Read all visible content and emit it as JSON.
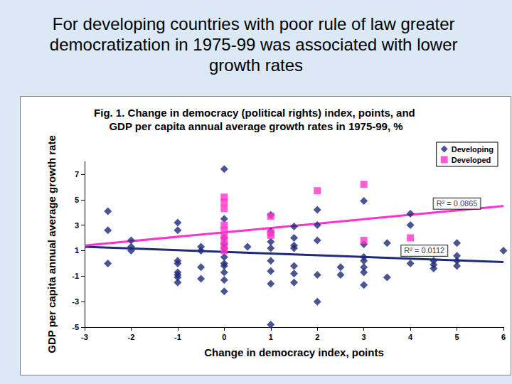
{
  "chart_data": {
    "type": "scatter",
    "title": "For developing countries with poor rule of law greater democratization in 1975-99 was associated with lower growth rates",
    "subtitle": "Fig. 1. Change in democracy (political rights) index, points, and GDP per capita annual average growth rates in 1975-99, %",
    "x_label": "Change in democracy index, points",
    "y_label": "GDP per capita annual average growth rate",
    "xlim": [
      -3,
      6
    ],
    "xticks": [
      -3,
      -2,
      -1,
      0,
      1,
      2,
      3,
      4,
      5,
      6
    ],
    "ylim": [
      -5,
      8
    ],
    "yticks": [
      -5,
      -3,
      -1,
      1,
      3,
      5,
      7
    ],
    "grid": false,
    "legend": "top-right",
    "series": [
      {
        "name": "Developing",
        "color": "#1f2a78",
        "marker": "diamond",
        "x": [
          -2.5,
          -2.5,
          -2.5,
          -2,
          -2,
          -2,
          -1,
          -1,
          -1,
          -1,
          -1,
          -1,
          -1,
          -1,
          -0.5,
          -0.5,
          -0.5,
          -0.5,
          0,
          0,
          0,
          0,
          0,
          0,
          0,
          0,
          0,
          0,
          0,
          0.5,
          1,
          1,
          1,
          1,
          1,
          1,
          1,
          1,
          1.5,
          1.5,
          1.5,
          1.5,
          1.5,
          1.5,
          1.5,
          2,
          2,
          2,
          2,
          2,
          2.5,
          2.5,
          3,
          3,
          3,
          3,
          3,
          3,
          3,
          3.5,
          3.5,
          4,
          4,
          4,
          4.5,
          4.5,
          4.5,
          5,
          5,
          5,
          5,
          6
        ],
        "values": [
          4.1,
          2.6,
          0,
          1.8,
          1.3,
          1.0,
          3.2,
          2.6,
          0.2,
          0,
          -0.7,
          -0.9,
          -1.1,
          -1.5,
          1.3,
          1.0,
          -0.3,
          -1.2,
          7.4,
          3.5,
          2.0,
          1.5,
          1.2,
          0.5,
          0,
          -0.2,
          -0.7,
          -1.3,
          -2.2,
          1.3,
          3.8,
          2.5,
          1.7,
          1.2,
          0.2,
          -0.6,
          -1.6,
          -4.8,
          2.9,
          2.0,
          1.4,
          1.2,
          -0.2,
          -0.8,
          -1.5,
          4.2,
          3.0,
          1.8,
          -0.9,
          -3.0,
          -0.3,
          -0.9,
          4.9,
          1.5,
          0.5,
          0.2,
          -0.3,
          -0.7,
          -1.7,
          1.6,
          -1.1,
          3.9,
          3.0,
          0,
          0.2,
          -0.1,
          -0.4,
          1.6,
          0.6,
          0.2,
          -0.2,
          1.0
        ],
        "trend": {
          "x": [
            -3,
            6
          ],
          "values": [
            1.3,
            0.1
          ]
        }
      },
      {
        "name": "Developed",
        "color": "#ff33cc",
        "marker": "square",
        "x": [
          0,
          0,
          0,
          0,
          0,
          0,
          0,
          0,
          0,
          1,
          1,
          1,
          2,
          3,
          3,
          4
        ],
        "values": [
          5.2,
          4.8,
          4.3,
          3.0,
          2.6,
          2.2,
          1.8,
          1.4,
          1.0,
          3.7,
          2.4,
          2.2,
          5.7,
          6.2,
          1.8,
          2.0
        ],
        "trend": {
          "x": [
            -3,
            6
          ],
          "values": [
            1.4,
            4.5
          ]
        }
      }
    ],
    "annotations": [
      {
        "text": "R² = 0.0865",
        "x": 5.0,
        "y": 4.7
      },
      {
        "text": "R² = 0.0112",
        "x": 4.3,
        "y": 1.0
      }
    ]
  }
}
